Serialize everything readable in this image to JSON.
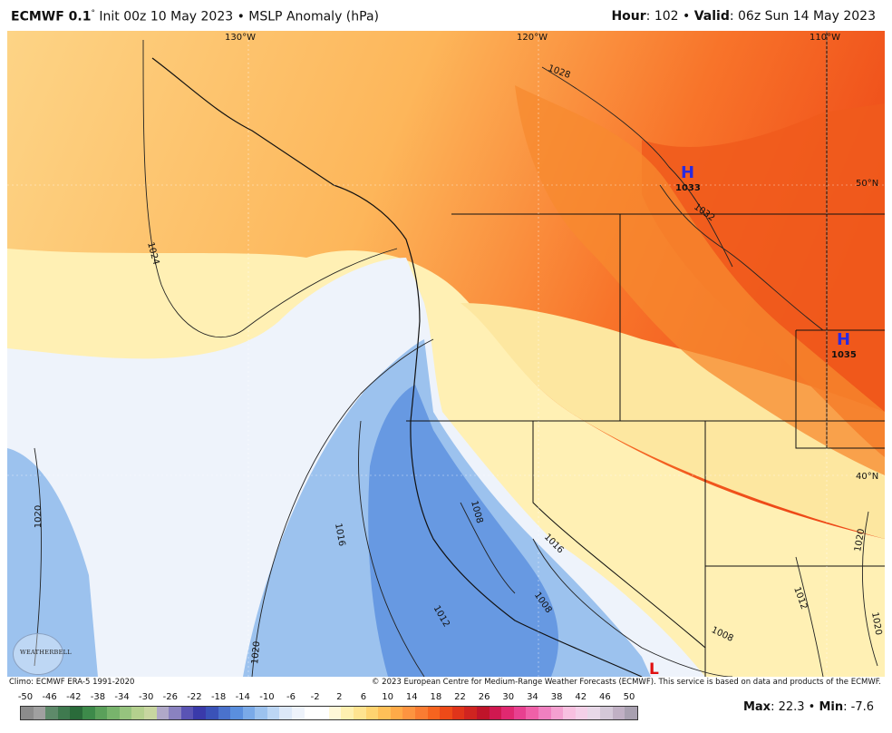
{
  "header": {
    "model": "ECMWF 0.1",
    "degree": "°",
    "init": " Init 00z 10 May 2023 • MSLP Anomaly (hPa)",
    "hour_label": "Hour",
    "hour_value": ": 102 • ",
    "valid_label": "Valid",
    "valid_value": ": 06z Sun 14 May 2023"
  },
  "map": {
    "lon_labels": [
      "130°W",
      "120°W",
      "110°W"
    ],
    "lat_labels": [
      "50°N",
      "40°N"
    ],
    "contour_labels": [
      "1024",
      "1028",
      "1032",
      "1008",
      "1016",
      "1020",
      "1012",
      "1020",
      "1016",
      "1008",
      "1012",
      "1008",
      "1020",
      "1020"
    ],
    "highs": [
      {
        "symbol": "H",
        "value": "1033"
      },
      {
        "symbol": "H",
        "value": "1035"
      }
    ],
    "lows": [
      {
        "symbol": "L"
      }
    ],
    "logo_text": "WEATHERBELL",
    "colors": {
      "ocean_pale": "#eef3fb",
      "blue_mid": "#8fb6ea",
      "blue_deep": "#5a8fde",
      "yellow_pale": "#fff5c2",
      "orange_mid": "#fdb65a",
      "orange_deep": "#f8742a",
      "red_orange": "#ee4a18"
    }
  },
  "credits": {
    "left": "Climo: ECMWF ERA-5 1991-2020",
    "right": "© 2023 European Centre for Medium-Range Weather Forecasts (ECMWF). This service is based on data and products of the ECMWF."
  },
  "colorbar": {
    "ticks": [
      "-50",
      "-46",
      "-42",
      "-38",
      "-34",
      "-30",
      "-26",
      "-22",
      "-18",
      "-14",
      "-10",
      "-6",
      "-2",
      "2",
      "6",
      "10",
      "14",
      "18",
      "22",
      "26",
      "30",
      "34",
      "38",
      "42",
      "46",
      "50"
    ],
    "colors": [
      "#8c8c8c",
      "#a0a0a0",
      "#5e8a6a",
      "#3f7a4f",
      "#2a6b3a",
      "#3d8a4a",
      "#5aa05a",
      "#78b46c",
      "#96c47e",
      "#b4d08e",
      "#c8d6a0",
      "#b0a8c8",
      "#8a82c0",
      "#5a54b4",
      "#3a3aaa",
      "#3a52b8",
      "#4a72cc",
      "#5a8fde",
      "#7aaae8",
      "#9cc2ee",
      "#bcd6f4",
      "#dce8f8",
      "#eef3fb",
      "#ffffff",
      "#ffffff",
      "#fff8d8",
      "#fff0b0",
      "#ffe490",
      "#ffd470",
      "#ffc058",
      "#ffaa48",
      "#fd9440",
      "#fa7c32",
      "#f6641f",
      "#ee4a18",
      "#e0341a",
      "#d02420",
      "#c0142a",
      "#d01850",
      "#e02870",
      "#e84090",
      "#f060a8",
      "#f080c0",
      "#f4a0d0",
      "#f8c0e0",
      "#f4d0e8",
      "#e8d8e8",
      "#d4c8d8",
      "#c0b0c4",
      "#a8a0b0"
    ],
    "max_label": "Max",
    "max_value": ": 22.3 • ",
    "min_label": "Min",
    "min_value": ": -7.6"
  }
}
